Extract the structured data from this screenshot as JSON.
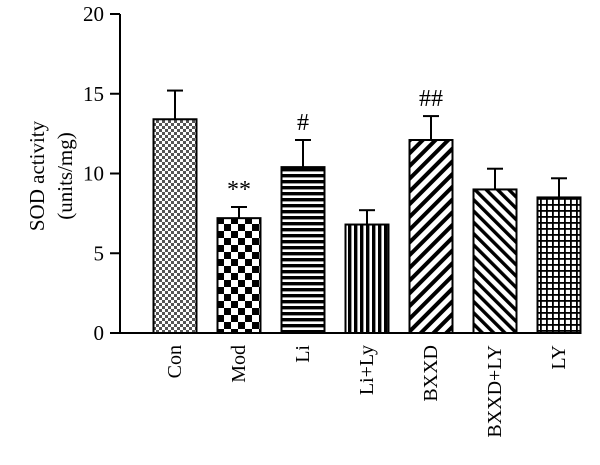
{
  "chart_data": {
    "type": "bar",
    "ylabel": "SOD activity",
    "ylabel_unit": "(units/mg)",
    "ylim": [
      0,
      20
    ],
    "yticks": [
      0,
      5,
      10,
      15,
      20
    ],
    "categories": [
      "Con",
      "Mod",
      "Li",
      "Li+Ly",
      "BXXD",
      "BXXD+LY",
      "LY"
    ],
    "values": [
      13.4,
      7.2,
      10.4,
      6.8,
      12.1,
      9.0,
      8.5
    ],
    "errors": [
      1.8,
      0.7,
      1.7,
      0.9,
      1.5,
      1.3,
      1.2
    ],
    "patterns": [
      "fine-checker",
      "coarse-checker",
      "horizontal-lines",
      "vertical-lines",
      "diagonal-lines",
      "diagonal-lines-reverse",
      "grid"
    ],
    "annotations": [
      "",
      "**",
      "#",
      "",
      "##",
      "",
      ""
    ],
    "grid": false
  }
}
